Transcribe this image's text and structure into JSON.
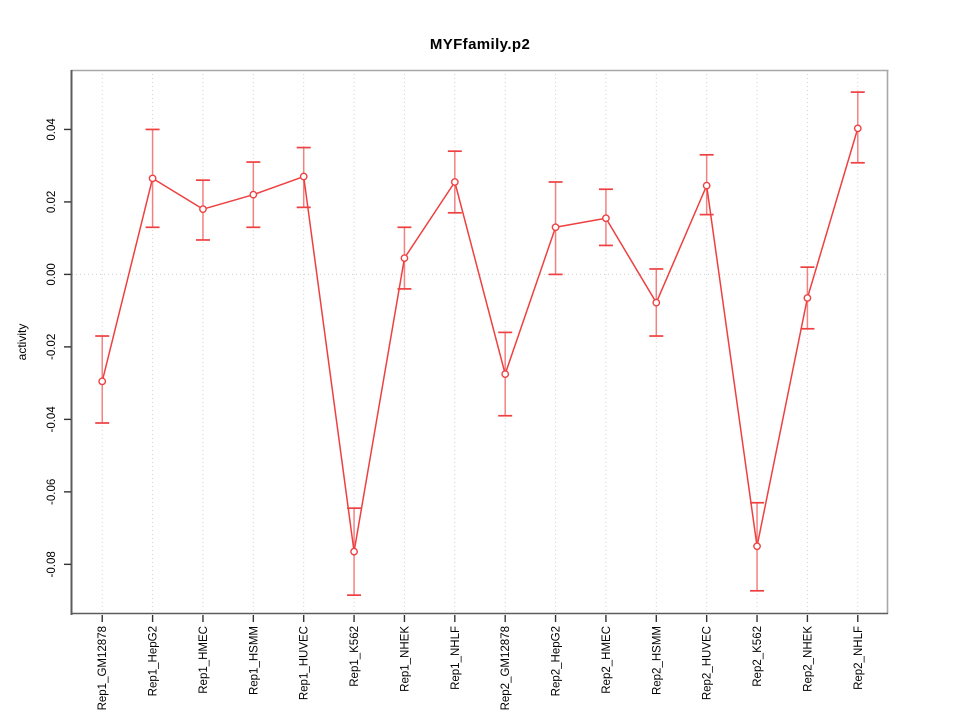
{
  "chart_data": {
    "type": "line",
    "title": "MYFfamily.p2",
    "ylabel": "activity",
    "xlabel": "",
    "legend": "none",
    "grid": "dotted vertical gridline per category; dotted horizontal line at 0",
    "categories": [
      "Rep1_GM12878",
      "Rep1_HepG2",
      "Rep1_HMEC",
      "Rep1_HSMM",
      "Rep1_HUVEC",
      "Rep1_K562",
      "Rep1_NHEK",
      "Rep1_NHLF",
      "Rep2_GM12878",
      "Rep2_HepG2",
      "Rep2_HMEC",
      "Rep2_HSMM",
      "Rep2_HUVEC",
      "Rep2_K562",
      "Rep2_NHEK",
      "Rep2_NHLF"
    ],
    "series": [
      {
        "name": "activity",
        "values": [
          -0.0295,
          0.0265,
          0.018,
          0.022,
          0.027,
          -0.0765,
          0.0045,
          0.0255,
          -0.0275,
          0.013,
          0.0155,
          -0.0078,
          0.0245,
          -0.075,
          -0.0065,
          0.0403
        ],
        "error_upper": [
          -0.017,
          0.04,
          0.026,
          0.031,
          0.035,
          -0.0645,
          0.013,
          0.034,
          -0.016,
          0.0255,
          0.0235,
          0.0015,
          0.033,
          -0.063,
          0.002,
          0.0503
        ],
        "error_lower": [
          -0.041,
          0.013,
          0.0095,
          0.013,
          0.0185,
          -0.0885,
          -0.004,
          0.017,
          -0.039,
          0.0,
          0.008,
          -0.017,
          0.0165,
          -0.0873,
          -0.015,
          0.0308
        ]
      }
    ],
    "yticks": [
      0.04,
      0.02,
      0.0,
      -0.02,
      -0.04,
      -0.06,
      -0.08
    ],
    "ytick_labels": [
      "0.04",
      "0.02",
      "0.00",
      "-0.02",
      "-0.04",
      "-0.06",
      "-0.08"
    ],
    "ylim": [
      -0.0937,
      0.0564
    ],
    "colors": {
      "series_line": "#ee4040",
      "error_stem": "#f28282",
      "point_fill": "#ffffff",
      "gridline": "#d2d2d2",
      "zero_line": "#d0d0d0",
      "frame": "#a8a8a8",
      "axis_line": "#5c5c5c",
      "tick_mark": "#333333",
      "tick_label": "#000000"
    }
  }
}
